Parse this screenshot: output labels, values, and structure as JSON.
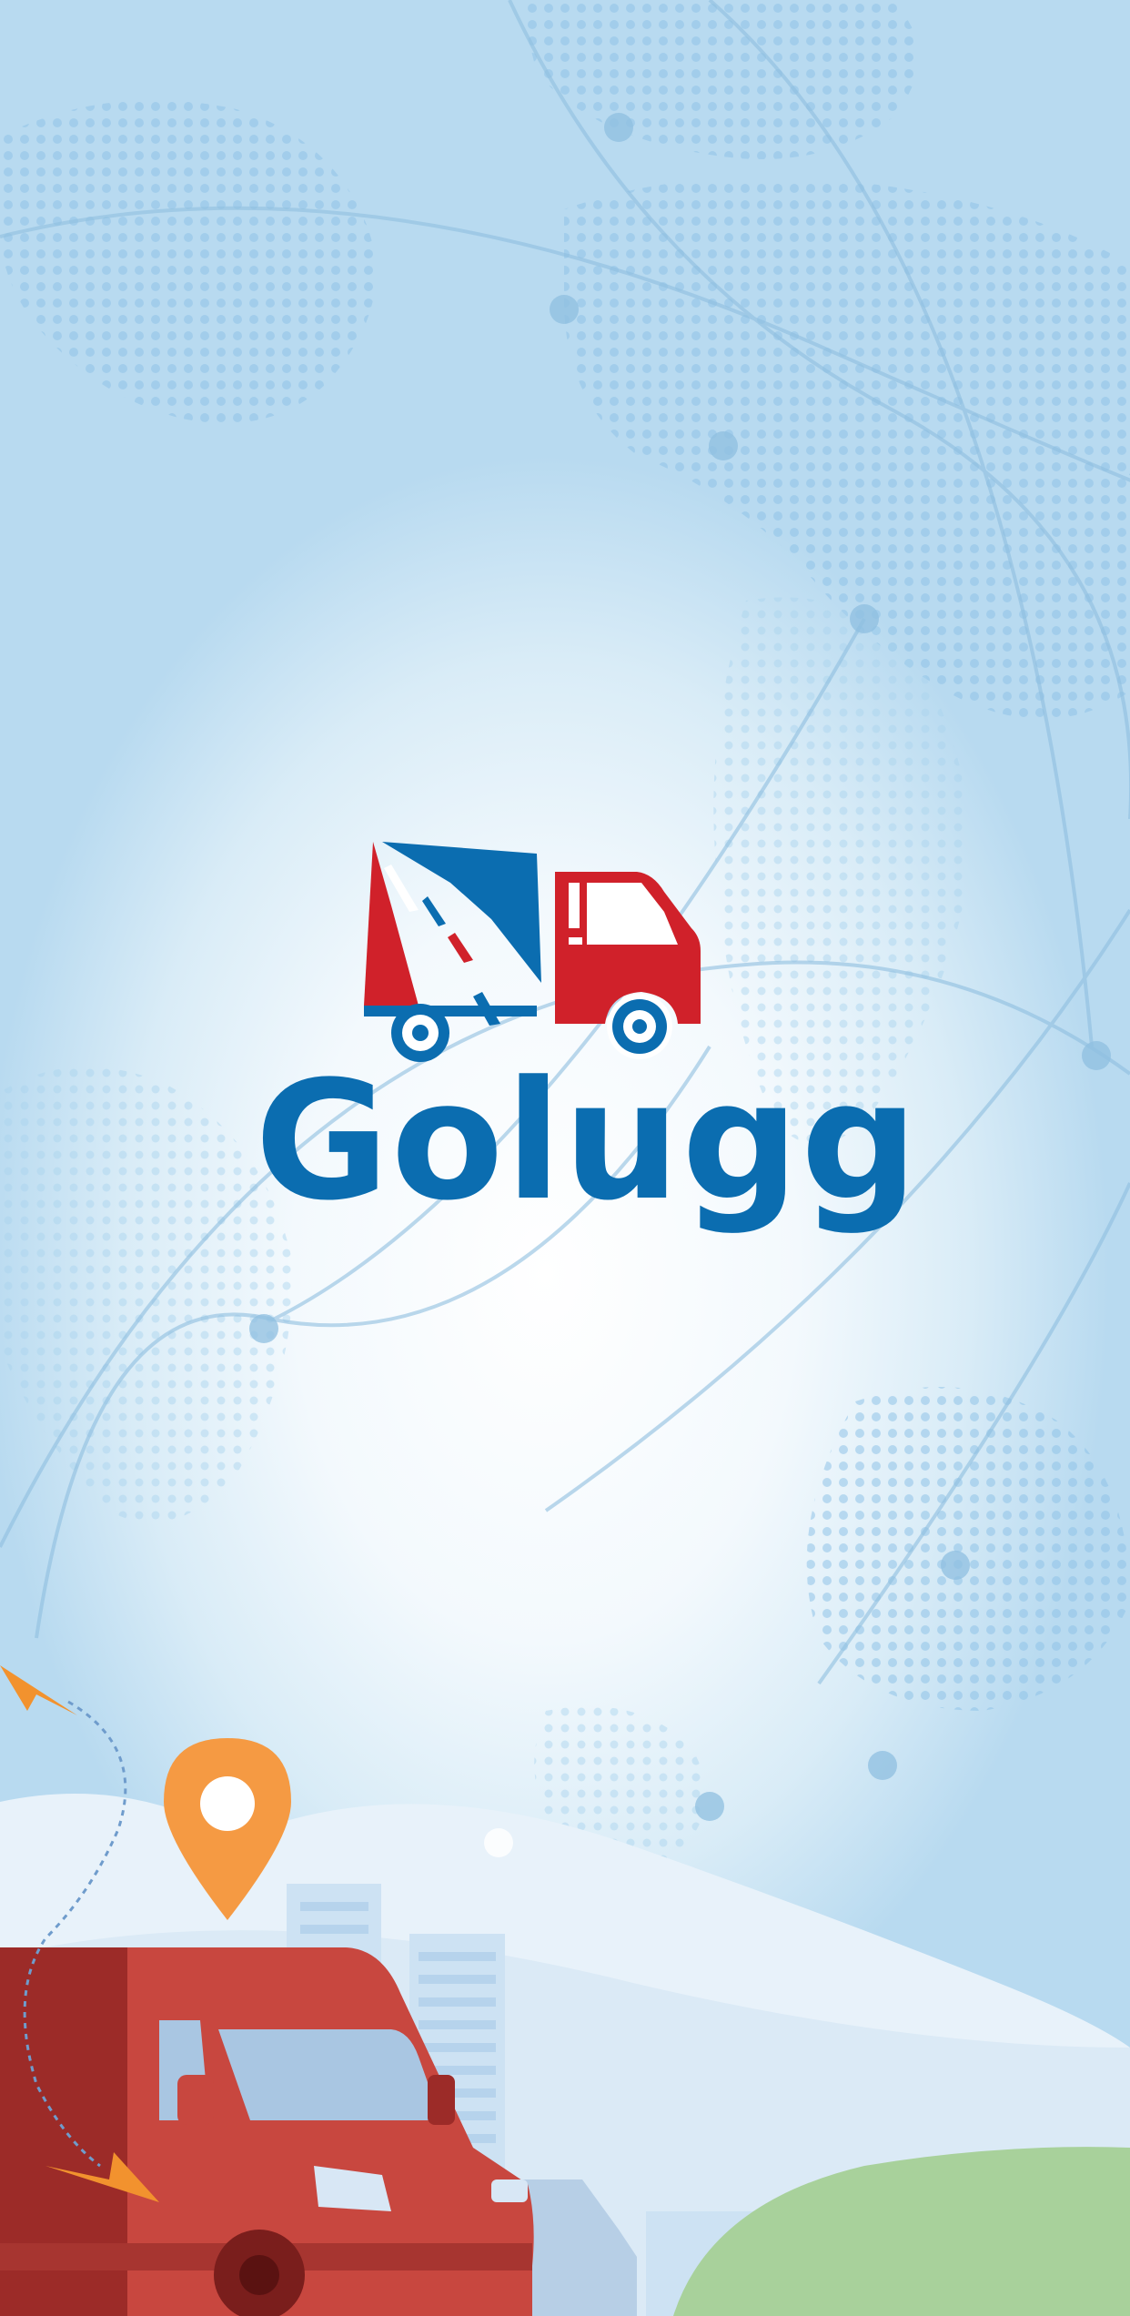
{
  "app": {
    "brand_name": "Golugg"
  },
  "colors": {
    "brand_blue": "#0b6db0",
    "brand_red": "#d0212a",
    "background_light": "#f3f9fd",
    "background_edge": "#b8daf0",
    "van_red": "#c8473f",
    "pin_orange": "#f59a43",
    "hill_green": "#a8d19b"
  },
  "icons": {
    "logo": "truck-with-road-logo",
    "pin": "location-pin-icon",
    "plane": "paper-plane-icon",
    "vehicle": "delivery-van-illustration"
  }
}
